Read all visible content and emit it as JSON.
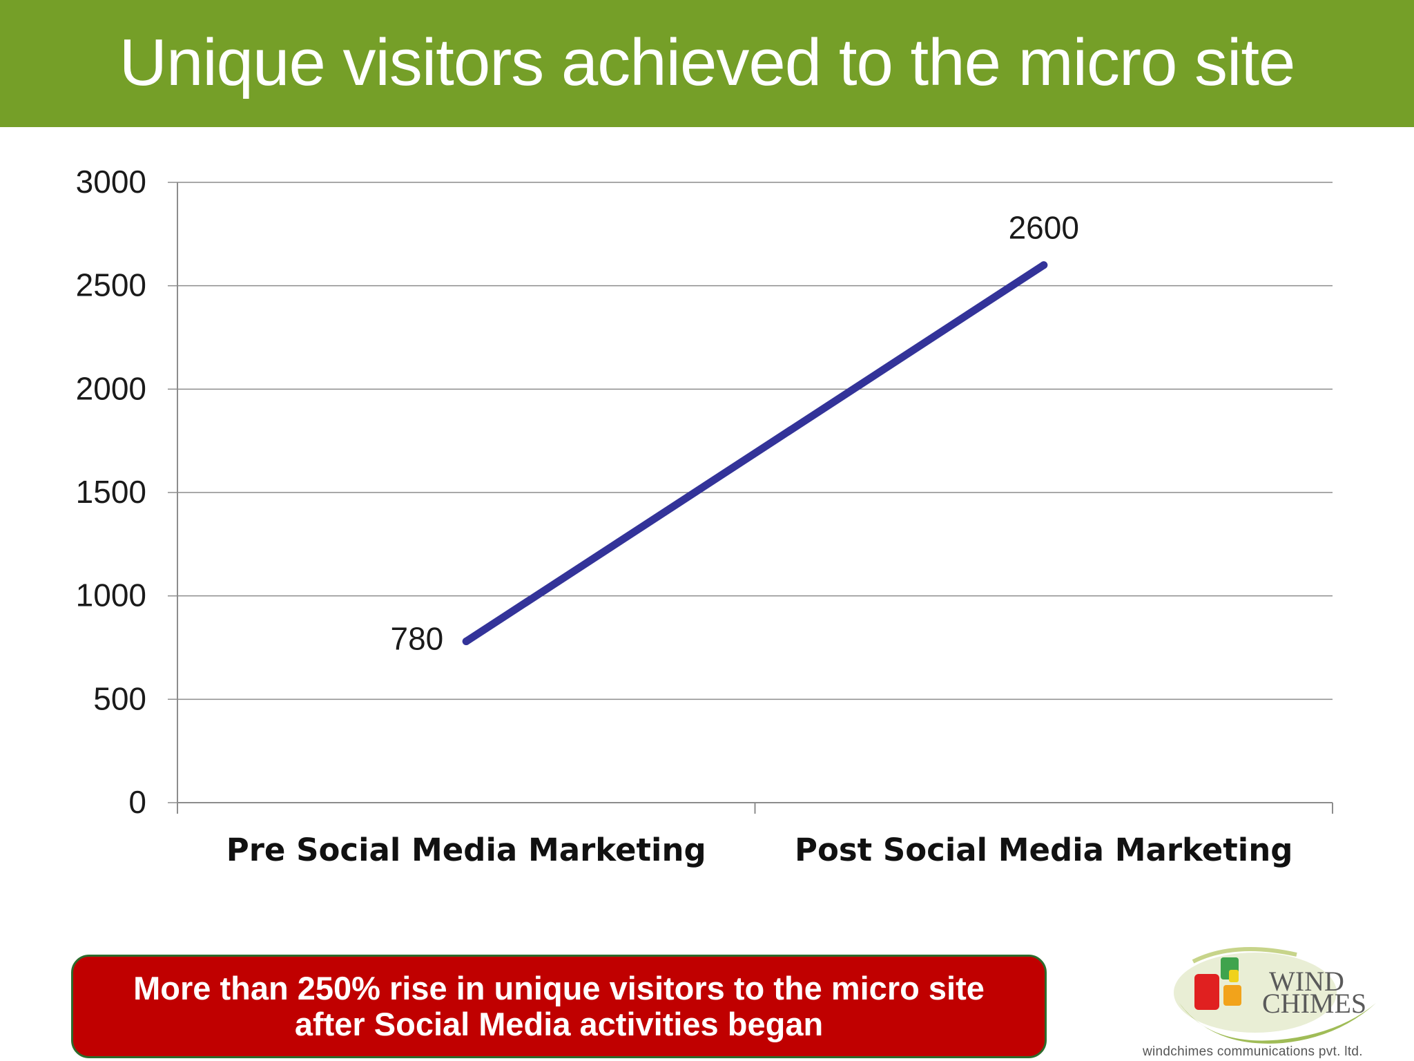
{
  "header": {
    "title": "Unique visitors achieved to the micro site"
  },
  "chart_data": {
    "type": "line",
    "title": "",
    "xlabel": "",
    "ylabel": "",
    "categories": [
      "Pre Social Media Marketing",
      "Post Social Media Marketing"
    ],
    "series": [
      {
        "values": [
          780,
          2600
        ],
        "color": "#333399"
      }
    ],
    "data_labels": [
      "780",
      "2600"
    ],
    "ylim": [
      0,
      3000
    ],
    "yticks": [
      0,
      500,
      1000,
      1500,
      2000,
      2500,
      3000
    ],
    "grid": true,
    "legend": "none"
  },
  "callout": {
    "line1": "More than 250% rise in unique visitors to the micro site",
    "line2": "after Social Media activities began"
  },
  "logo": {
    "word1": "WIND",
    "word2": "CHIMES",
    "caption": "windchimes communications pvt. ltd."
  },
  "colors": {
    "header_bg": "#759f28",
    "series_line": "#333399",
    "callout_bg": "#c00000",
    "gridline": "#8c8c8c"
  }
}
